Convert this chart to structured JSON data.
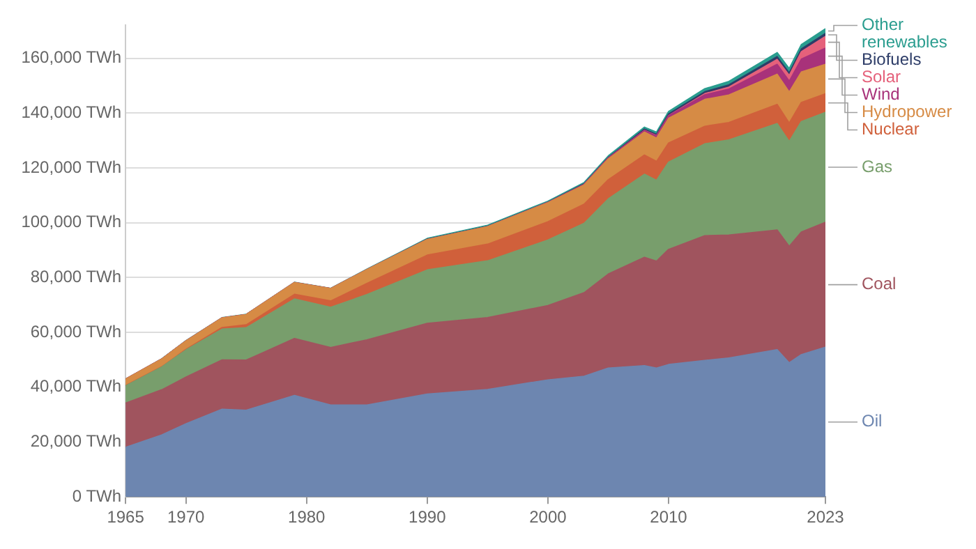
{
  "chart_data": {
    "type": "area",
    "stacked": true,
    "x": [
      1965,
      1968,
      1970,
      1973,
      1975,
      1979,
      1982,
      1985,
      1990,
      1995,
      2000,
      2003,
      2005,
      2008,
      2009,
      2010,
      2013,
      2015,
      2019,
      2020,
      2021,
      2023
    ],
    "xlim": [
      1965,
      2023
    ],
    "xticks": [
      1965,
      1970,
      1980,
      1990,
      2000,
      2010,
      2023
    ],
    "ylim": [
      0,
      172000
    ],
    "yticks": [
      {
        "value": 0,
        "label": "0 TWh"
      },
      {
        "value": 20000,
        "label": "20,000 TWh"
      },
      {
        "value": 40000,
        "label": "40,000 TWh"
      },
      {
        "value": 60000,
        "label": "60,000 TWh"
      },
      {
        "value": 80000,
        "label": "80,000 TWh"
      },
      {
        "value": 100000,
        "label": "100,000 TWh"
      },
      {
        "value": 120000,
        "label": "120,000 TWh"
      },
      {
        "value": 140000,
        "label": "140,000 TWh"
      },
      {
        "value": 160000,
        "label": "160,000 TWh"
      }
    ],
    "grid": "y",
    "series": [
      {
        "name": "Oil",
        "color": "#6d86b0",
        "values": [
          18100,
          22600,
          26700,
          32000,
          31600,
          37000,
          33500,
          33500,
          37500,
          39200,
          42700,
          44000,
          47000,
          47900,
          47000,
          48300,
          49800,
          50700,
          53700,
          48900,
          51900,
          54600
        ]
      },
      {
        "name": "Coal",
        "color": "#a0545e",
        "values": [
          16100,
          16500,
          17000,
          18000,
          18300,
          20800,
          21000,
          23800,
          25800,
          26200,
          27100,
          30500,
          34300,
          39500,
          39000,
          42000,
          45500,
          44800,
          43700,
          42500,
          44700,
          45600
        ]
      },
      {
        "name": "Gas",
        "color": "#789e6c",
        "values": [
          6300,
          8300,
          9900,
          11200,
          11800,
          14400,
          14700,
          16500,
          19500,
          20700,
          23900,
          25300,
          27400,
          30300,
          29500,
          31800,
          33500,
          34700,
          38800,
          38300,
          40300,
          40100
        ]
      },
      {
        "name": "Nuclear",
        "color": "#d0603b",
        "values": [
          100,
          100,
          200,
          600,
          1100,
          1700,
          2300,
          4100,
          5400,
          6100,
          6700,
          7000,
          7000,
          7000,
          6900,
          7000,
          6400,
          6400,
          7000,
          6700,
          7000,
          6800
        ]
      },
      {
        "name": "Hydropower",
        "color": "#d68b45",
        "values": [
          2400,
          2800,
          3100,
          3500,
          3700,
          4300,
          4500,
          5000,
          5700,
          6400,
          6900,
          7000,
          7600,
          8400,
          8500,
          9000,
          9800,
          10000,
          11000,
          11300,
          11100,
          10700
        ]
      },
      {
        "name": "Wind",
        "color": "#a8327a",
        "values": [
          0,
          0,
          0,
          0,
          0,
          0,
          0,
          0,
          0,
          0,
          100,
          200,
          300,
          600,
          800,
          900,
          1700,
          2200,
          3600,
          4000,
          4700,
          5900
        ]
      },
      {
        "name": "Solar",
        "color": "#e5617b",
        "values": [
          0,
          0,
          0,
          0,
          0,
          0,
          0,
          0,
          0,
          0,
          0,
          0,
          0,
          0,
          100,
          100,
          400,
          700,
          1800,
          2100,
          2700,
          4300
        ]
      },
      {
        "name": "Biofuels",
        "color": "#2e3d68",
        "values": [
          0,
          0,
          0,
          0,
          0,
          0,
          0,
          0,
          100,
          100,
          100,
          200,
          200,
          500,
          500,
          600,
          700,
          800,
          1000,
          900,
          1000,
          1100
        ]
      },
      {
        "name": "Other renewables",
        "color": "#2a9d8f",
        "values": [
          0,
          100,
          100,
          100,
          100,
          100,
          100,
          200,
          300,
          400,
          400,
          500,
          600,
          700,
          800,
          900,
          1100,
          1300,
          1500,
          1600,
          1600,
          1700
        ]
      }
    ]
  }
}
